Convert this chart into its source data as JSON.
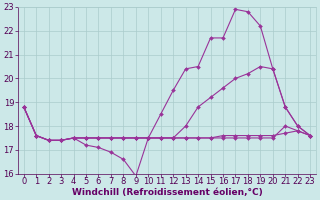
{
  "bg_color": "#cce8e8",
  "line_color": "#993399",
  "grid_color": "#aacccc",
  "xlabel": "Windchill (Refroidissement éolien,°C)",
  "xlabel_color": "#660066",
  "tick_color": "#550055",
  "xlim": [
    -0.5,
    23.5
  ],
  "ylim": [
    16,
    23
  ],
  "yticks": [
    16,
    17,
    18,
    19,
    20,
    21,
    22,
    23
  ],
  "xticks": [
    0,
    1,
    2,
    3,
    4,
    5,
    6,
    7,
    8,
    9,
    10,
    11,
    12,
    13,
    14,
    15,
    16,
    17,
    18,
    19,
    20,
    21,
    22,
    23
  ],
  "line1_x": [
    0,
    1,
    2,
    3,
    4,
    5,
    6,
    7,
    8,
    9,
    10,
    11,
    12,
    13,
    14,
    15,
    16,
    17,
    18,
    19,
    20,
    21,
    22,
    23
  ],
  "line1_y": [
    18.8,
    17.6,
    17.4,
    17.4,
    17.5,
    17.5,
    17.5,
    17.5,
    17.5,
    17.5,
    17.5,
    17.5,
    17.5,
    17.5,
    17.5,
    17.5,
    17.6,
    17.6,
    17.6,
    17.6,
    17.6,
    17.7,
    17.8,
    17.6
  ],
  "line2_x": [
    0,
    1,
    2,
    3,
    4,
    5,
    6,
    7,
    8,
    9,
    10,
    11,
    12,
    13,
    14,
    15,
    16,
    17,
    18,
    19,
    20,
    21,
    22,
    23
  ],
  "line2_y": [
    18.8,
    17.6,
    17.4,
    17.4,
    17.5,
    17.2,
    17.1,
    16.9,
    16.6,
    15.9,
    17.5,
    17.5,
    17.5,
    17.5,
    17.5,
    17.5,
    17.5,
    17.5,
    17.5,
    17.5,
    17.5,
    18.0,
    17.8,
    17.6
  ],
  "line3_x": [
    0,
    1,
    2,
    3,
    4,
    5,
    6,
    7,
    8,
    9,
    10,
    11,
    12,
    13,
    14,
    15,
    16,
    17,
    18,
    19,
    20,
    21,
    22,
    23
  ],
  "line3_y": [
    18.8,
    17.6,
    17.4,
    17.4,
    17.5,
    17.5,
    17.5,
    17.5,
    17.5,
    17.5,
    17.5,
    18.5,
    19.5,
    20.4,
    20.5,
    21.7,
    21.7,
    22.9,
    22.8,
    22.2,
    20.4,
    18.8,
    18.0,
    17.6
  ],
  "line4_x": [
    0,
    1,
    2,
    3,
    4,
    5,
    6,
    7,
    8,
    9,
    10,
    11,
    12,
    13,
    14,
    15,
    16,
    17,
    18,
    19,
    20,
    21,
    22,
    23
  ],
  "line4_y": [
    18.8,
    17.6,
    17.4,
    17.4,
    17.5,
    17.5,
    17.5,
    17.5,
    17.5,
    17.5,
    17.5,
    17.5,
    17.5,
    18.0,
    18.8,
    19.2,
    19.6,
    20.0,
    20.2,
    20.5,
    20.4,
    18.8,
    18.0,
    17.6
  ],
  "marker": "D",
  "markersize": 2.0,
  "linewidth": 0.8,
  "xlabel_fontsize": 6.5,
  "tick_fontsize": 6.0,
  "fig_width": 3.2,
  "fig_height": 2.0,
  "dpi": 100
}
